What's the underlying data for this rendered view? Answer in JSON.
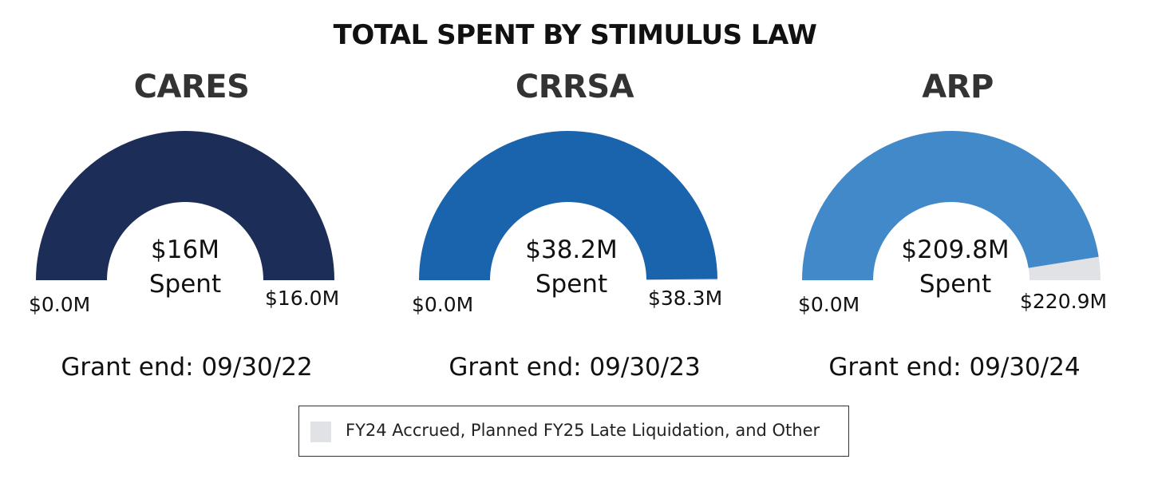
{
  "chart_data": {
    "type": "gauge",
    "title": "TOTAL SPENT BY STIMULUS LAW",
    "gauges": [
      {
        "name": "CARES",
        "spent": 16.0,
        "total": 16.0,
        "center_value": "$16M",
        "center_label": "Spent",
        "min_label": "$0.0M",
        "max_label": "$16.0M",
        "grant_end": "Grant end: 09/30/22",
        "color": "#1c2d57"
      },
      {
        "name": "CRRSA",
        "spent": 38.2,
        "total": 38.3,
        "center_value": "$38.2M",
        "center_label": "Spent",
        "min_label": "$0.0M",
        "max_label": "$38.3M",
        "grant_end": "Grant end: 09/30/23",
        "color": "#1a64ae"
      },
      {
        "name": "ARP",
        "spent": 209.8,
        "total": 220.9,
        "center_value": "$209.8M",
        "center_label": "Spent",
        "min_label": "$0.0M",
        "max_label": "$220.9M",
        "grant_end": "Grant end: 09/30/24",
        "color": "#4189c9"
      }
    ],
    "remainder_color": "#e1e2e5",
    "legend": {
      "label": "FY24 Accrued, Planned FY25 Late Liquidation, and Other",
      "color": "#e1e2e5"
    }
  }
}
